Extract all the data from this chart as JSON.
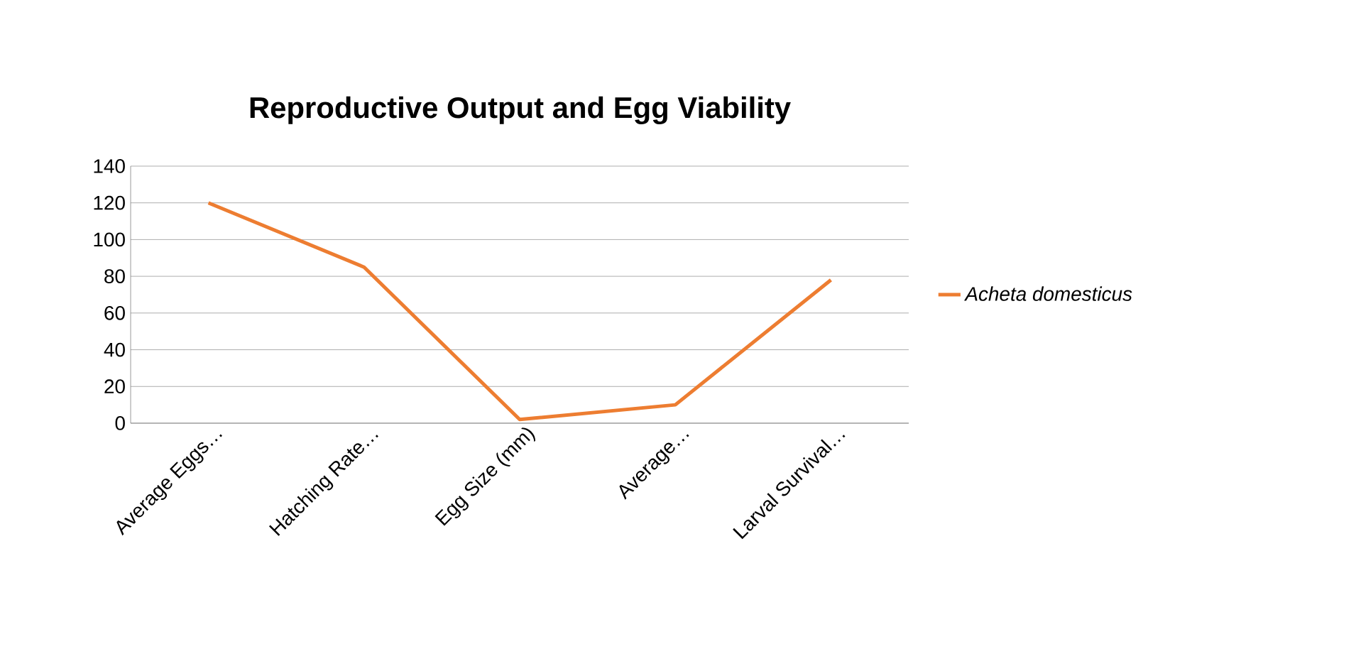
{
  "chart_data": {
    "type": "line",
    "title": "Reproductive Output and Egg Viability",
    "categories": [
      "Average Eggs…",
      "Hatching Rate…",
      "Egg Size (mm)",
      "Average…",
      "Larval Survival…"
    ],
    "series": [
      {
        "name": "Acheta domesticus",
        "color": "#ed7d31",
        "values": [
          120,
          85,
          2,
          10,
          78
        ]
      }
    ],
    "ylim": [
      0,
      140
    ],
    "yticks": [
      0,
      20,
      40,
      60,
      80,
      100,
      120,
      140
    ],
    "grid": "y",
    "legend": "right",
    "marker": "none",
    "line_style": "solid"
  }
}
